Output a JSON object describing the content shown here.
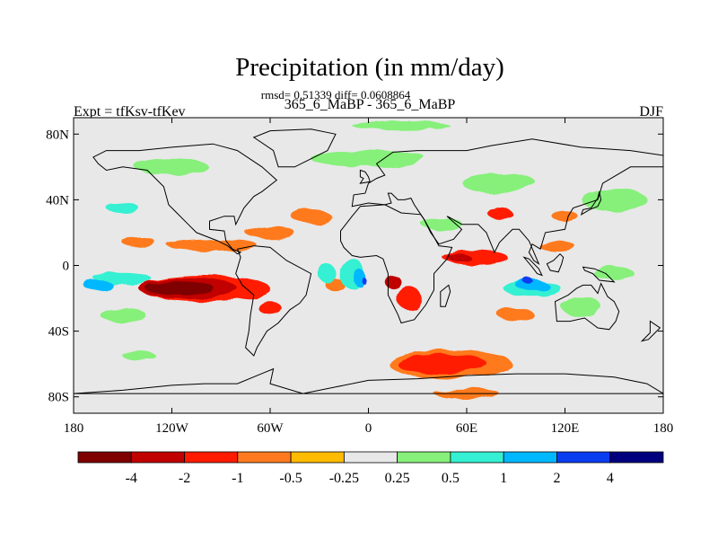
{
  "chart_data": {
    "type": "heatmap",
    "title": "Precipitation (in mm/day)",
    "stats_line": "rmsd= 0.51339 diff= 0.0608864",
    "comparison": "365_6_MaBP - 365_6_MaBP",
    "left_label": "Expt = tfKsv-tfKev",
    "right_label": "DJF",
    "x_ticks": [
      "180",
      "120W",
      "60W",
      "0",
      "60E",
      "120E",
      "180"
    ],
    "y_ticks": [
      "80N",
      "40N",
      "0",
      "40S",
      "80S"
    ],
    "xlim": [
      -180,
      180
    ],
    "ylim": [
      -90,
      90
    ],
    "colorbar": {
      "colors": [
        "#7f0000",
        "#c10000",
        "#ff1a00",
        "#ff7a1f",
        "#ffbb00",
        "#e8e8e8",
        "#86f07a",
        "#35f0d2",
        "#00b8ff",
        "#0a3cf0",
        "#00007f"
      ],
      "labels": [
        "-4",
        "-2",
        "-1",
        "-0.5",
        "-0.25",
        "0.25",
        "0.5",
        "1",
        "2",
        "4"
      ]
    },
    "anomaly_regions": [
      {
        "lon": -115,
        "lat": -14,
        "lw": 42,
        "lh": 9,
        "level": -4
      },
      {
        "lon": -110,
        "lat": -14,
        "lw": 60,
        "lh": 13,
        "level": -2
      },
      {
        "lon": -100,
        "lat": -14,
        "lw": 80,
        "lh": 16,
        "level": -1
      },
      {
        "lon": -60,
        "lat": -26,
        "lw": 14,
        "lh": 8,
        "level": -1
      },
      {
        "lon": -95,
        "lat": 12,
        "lw": 55,
        "lh": 7,
        "level": -0.5
      },
      {
        "lon": -60,
        "lat": 20,
        "lw": 30,
        "lh": 8,
        "level": -0.5
      },
      {
        "lon": -140,
        "lat": 14,
        "lw": 20,
        "lh": 7,
        "level": -0.5
      },
      {
        "lon": -35,
        "lat": 30,
        "lw": 24,
        "lh": 9,
        "level": -0.5
      },
      {
        "lon": 80,
        "lat": 32,
        "lw": 15,
        "lh": 7,
        "level": -1
      },
      {
        "lon": 120,
        "lat": 30,
        "lw": 16,
        "lh": 6,
        "level": -0.5
      },
      {
        "lon": 50,
        "lat": -60,
        "lw": 75,
        "lh": 18,
        "level": -0.5
      },
      {
        "lon": 45,
        "lat": -60,
        "lw": 55,
        "lh": 12,
        "level": -1
      },
      {
        "lon": 60,
        "lat": -78,
        "lw": 40,
        "lh": 6,
        "level": -0.5
      },
      {
        "lon": 25,
        "lat": -20,
        "lw": 15,
        "lh": 14,
        "level": -1
      },
      {
        "lon": 15,
        "lat": -10,
        "lw": 10,
        "lh": 8,
        "level": -2
      },
      {
        "lon": 65,
        "lat": 5,
        "lw": 40,
        "lh": 8,
        "level": -1
      },
      {
        "lon": 55,
        "lat": 5,
        "lw": 15,
        "lh": 4,
        "level": -2
      },
      {
        "lon": 90,
        "lat": -30,
        "lw": 22,
        "lh": 8,
        "level": -0.5
      },
      {
        "lon": -20,
        "lat": -12,
        "lw": 12,
        "lh": 8,
        "level": -0.5
      },
      {
        "lon": 115,
        "lat": 12,
        "lw": 22,
        "lh": 6,
        "level": -0.5
      },
      {
        "lon": 150,
        "lat": -5,
        "lw": 25,
        "lh": 8,
        "level": 0.5
      },
      {
        "lon": -150,
        "lat": -8,
        "lw": 35,
        "lh": 8,
        "level": 1
      },
      {
        "lon": -165,
        "lat": -12,
        "lw": 18,
        "lh": 6,
        "level": 2
      },
      {
        "lon": -150,
        "lat": -30,
        "lw": 28,
        "lh": 8,
        "level": 0.5
      },
      {
        "lon": -10,
        "lat": -5,
        "lw": 16,
        "lh": 18,
        "level": 1
      },
      {
        "lon": -5,
        "lat": -8,
        "lw": 8,
        "lh": 10,
        "level": 2
      },
      {
        "lon": -2,
        "lat": -10,
        "lw": 3,
        "lh": 4,
        "level": 4
      },
      {
        "lon": -25,
        "lat": -5,
        "lw": 10,
        "lh": 12,
        "level": 1
      },
      {
        "lon": 100,
        "lat": -14,
        "lw": 35,
        "lh": 10,
        "level": 1
      },
      {
        "lon": 100,
        "lat": -12,
        "lw": 20,
        "lh": 7,
        "level": 2
      },
      {
        "lon": 98,
        "lat": -10,
        "lw": 6,
        "lh": 4,
        "level": 4
      },
      {
        "lon": 130,
        "lat": -25,
        "lw": 25,
        "lh": 10,
        "level": 0.5
      },
      {
        "lon": 150,
        "lat": 40,
        "lw": 40,
        "lh": 14,
        "level": 0.5
      },
      {
        "lon": 0,
        "lat": 65,
        "lw": 70,
        "lh": 10,
        "level": 0.5
      },
      {
        "lon": -120,
        "lat": 60,
        "lw": 45,
        "lh": 10,
        "level": 0.5
      },
      {
        "lon": 80,
        "lat": 50,
        "lw": 45,
        "lh": 12,
        "level": 0.5
      },
      {
        "lon": -150,
        "lat": 35,
        "lw": 20,
        "lh": 6,
        "level": 1
      },
      {
        "lon": 45,
        "lat": 25,
        "lw": 25,
        "lh": 8,
        "level": 0.5
      },
      {
        "lon": -140,
        "lat": -55,
        "lw": 20,
        "lh": 6,
        "level": 0.5
      },
      {
        "lon": 20,
        "lat": 85,
        "lw": 60,
        "lh": 5,
        "level": 0.5
      }
    ],
    "coastlines": [
      {
        "name": "south-america",
        "points": [
          [
            -80,
            10
          ],
          [
            -70,
            12
          ],
          [
            -60,
            11
          ],
          [
            -50,
            3
          ],
          [
            -35,
            -5
          ],
          [
            -38,
            -18
          ],
          [
            -42,
            -23
          ],
          [
            -48,
            -27
          ],
          [
            -55,
            -35
          ],
          [
            -62,
            -40
          ],
          [
            -68,
            -50
          ],
          [
            -70,
            -55
          ],
          [
            -75,
            -50
          ],
          [
            -73,
            -40
          ],
          [
            -72,
            -30
          ],
          [
            -70,
            -18
          ],
          [
            -77,
            -12
          ],
          [
            -81,
            -5
          ],
          [
            -78,
            5
          ]
        ]
      },
      {
        "name": "africa",
        "points": [
          [
            -17,
            15
          ],
          [
            -17,
            21
          ],
          [
            -10,
            30
          ],
          [
            -5,
            36
          ],
          [
            10,
            37
          ],
          [
            20,
            32
          ],
          [
            32,
            31
          ],
          [
            34,
            28
          ],
          [
            43,
            12
          ],
          [
            51,
            11
          ],
          [
            48,
            4
          ],
          [
            40,
            -5
          ],
          [
            40,
            -15
          ],
          [
            35,
            -24
          ],
          [
            28,
            -33
          ],
          [
            20,
            -35
          ],
          [
            18,
            -30
          ],
          [
            12,
            -18
          ],
          [
            12,
            -5
          ],
          [
            9,
            4
          ],
          [
            5,
            6
          ],
          [
            -5,
            5
          ],
          [
            -10,
            6
          ],
          [
            -15,
            11
          ]
        ]
      },
      {
        "name": "eurasia",
        "points": [
          [
            -10,
            36
          ],
          [
            -9,
            43
          ],
          [
            -2,
            44
          ],
          [
            0,
            50
          ],
          [
            5,
            53
          ],
          [
            10,
            55
          ],
          [
            5,
            62
          ],
          [
            15,
            69
          ],
          [
            30,
            70
          ],
          [
            60,
            70
          ],
          [
            75,
            73
          ],
          [
            100,
            77
          ],
          [
            130,
            72
          ],
          [
            160,
            70
          ],
          [
            180,
            67
          ],
          [
            180,
            60
          ],
          [
            160,
            60
          ],
          [
            143,
            50
          ],
          [
            140,
            40
          ],
          [
            125,
            35
          ],
          [
            122,
            30
          ],
          [
            120,
            22
          ],
          [
            108,
            20
          ],
          [
            105,
            10
          ],
          [
            100,
            13
          ],
          [
            98,
            8
          ],
          [
            101,
            3
          ],
          [
            104,
            1
          ],
          [
            98,
            15
          ],
          [
            92,
            22
          ],
          [
            88,
            22
          ],
          [
            80,
            14
          ],
          [
            77,
            8
          ],
          [
            72,
            20
          ],
          [
            67,
            25
          ],
          [
            57,
            25
          ],
          [
            50,
            29
          ],
          [
            48,
            30
          ],
          [
            57,
            22
          ],
          [
            52,
            16
          ],
          [
            43,
            13
          ],
          [
            38,
            20
          ],
          [
            34,
            28
          ],
          [
            32,
            31
          ],
          [
            28,
            37
          ],
          [
            26,
            41
          ],
          [
            22,
            40
          ],
          [
            18,
            40
          ],
          [
            14,
            44
          ],
          [
            12,
            44
          ],
          [
            14,
            38
          ],
          [
            10,
            37
          ],
          [
            0,
            38
          ]
        ]
      },
      {
        "name": "north-america",
        "points": [
          [
            -168,
            66
          ],
          [
            -160,
            70
          ],
          [
            -140,
            70
          ],
          [
            -120,
            72
          ],
          [
            -95,
            74
          ],
          [
            -80,
            70
          ],
          [
            -65,
            60
          ],
          [
            -56,
            52
          ],
          [
            -65,
            45
          ],
          [
            -70,
            42
          ],
          [
            -76,
            35
          ],
          [
            -81,
            25
          ],
          [
            -82,
            30
          ],
          [
            -88,
            30
          ],
          [
            -97,
            27
          ],
          [
            -97,
            22
          ],
          [
            -88,
            21
          ],
          [
            -87,
            15
          ],
          [
            -83,
            10
          ],
          [
            -78,
            8
          ],
          [
            -80,
            7
          ],
          [
            -86,
            12
          ],
          [
            -92,
            15
          ],
          [
            -105,
            20
          ],
          [
            -110,
            25
          ],
          [
            -117,
            32
          ],
          [
            -122,
            37
          ],
          [
            -125,
            48
          ],
          [
            -135,
            58
          ],
          [
            -150,
            60
          ],
          [
            -160,
            58
          ],
          [
            -165,
            62
          ]
        ]
      },
      {
        "name": "australia",
        "points": [
          [
            114,
            -22
          ],
          [
            115,
            -34
          ],
          [
            123,
            -34
          ],
          [
            132,
            -32
          ],
          [
            140,
            -38
          ],
          [
            147,
            -39
          ],
          [
            151,
            -34
          ],
          [
            153,
            -28
          ],
          [
            150,
            -22
          ],
          [
            146,
            -19
          ],
          [
            142,
            -11
          ],
          [
            140,
            -17
          ],
          [
            136,
            -12
          ],
          [
            131,
            -12
          ],
          [
            127,
            -14
          ],
          [
            122,
            -18
          ]
        ]
      },
      {
        "name": "greenland",
        "points": [
          [
            -55,
            60
          ],
          [
            -45,
            60
          ],
          [
            -25,
            70
          ],
          [
            -20,
            80
          ],
          [
            -35,
            83
          ],
          [
            -60,
            82
          ],
          [
            -70,
            78
          ],
          [
            -58,
            70
          ]
        ]
      },
      {
        "name": "antarctica",
        "points": [
          [
            -180,
            -78
          ],
          [
            -150,
            -76
          ],
          [
            -120,
            -73
          ],
          [
            -100,
            -72
          ],
          [
            -80,
            -72
          ],
          [
            -63,
            -65
          ],
          [
            -58,
            -63
          ],
          [
            -60,
            -72
          ],
          [
            -40,
            -78
          ],
          [
            -20,
            -74
          ],
          [
            0,
            -70
          ],
          [
            30,
            -69
          ],
          [
            60,
            -67
          ],
          [
            90,
            -66
          ],
          [
            120,
            -66
          ],
          [
            150,
            -68
          ],
          [
            170,
            -72
          ],
          [
            180,
            -78
          ]
        ]
      },
      {
        "name": "madagascar",
        "points": [
          [
            44,
            -25
          ],
          [
            44,
            -16
          ],
          [
            49,
            -12
          ],
          [
            50,
            -16
          ],
          [
            47,
            -25
          ]
        ]
      },
      {
        "name": "borneo",
        "points": [
          [
            109,
            1
          ],
          [
            113,
            3
          ],
          [
            117,
            7
          ],
          [
            119,
            5
          ],
          [
            118,
            1
          ],
          [
            116,
            -4
          ],
          [
            111,
            -3
          ]
        ]
      },
      {
        "name": "sumatra",
        "points": [
          [
            95,
            5
          ],
          [
            98,
            4
          ],
          [
            104,
            -2
          ],
          [
            106,
            -6
          ],
          [
            103,
            -5
          ],
          [
            100,
            -1
          ]
        ]
      },
      {
        "name": "new-guinea",
        "points": [
          [
            131,
            -1
          ],
          [
            138,
            -2
          ],
          [
            145,
            -5
          ],
          [
            150,
            -10
          ],
          [
            141,
            -9
          ],
          [
            137,
            -5
          ],
          [
            132,
            -3
          ]
        ]
      },
      {
        "name": "japan",
        "points": [
          [
            130,
            31
          ],
          [
            135,
            34
          ],
          [
            140,
            36
          ],
          [
            142,
            40
          ],
          [
            141,
            45
          ],
          [
            140,
            41
          ],
          [
            136,
            35
          ],
          [
            131,
            34
          ]
        ]
      },
      {
        "name": "uk",
        "points": [
          [
            -5,
            50
          ],
          [
            1,
            51
          ],
          [
            0,
            54
          ],
          [
            -2,
            57
          ],
          [
            -5,
            58
          ],
          [
            -5,
            54
          ],
          [
            -3,
            53
          ]
        ]
      },
      {
        "name": "new-zealand",
        "points": [
          [
            172,
            -34
          ],
          [
            178,
            -38
          ],
          [
            175,
            -41
          ],
          [
            171,
            -45
          ],
          [
            167,
            -46
          ],
          [
            172,
            -41
          ]
        ]
      }
    ]
  }
}
